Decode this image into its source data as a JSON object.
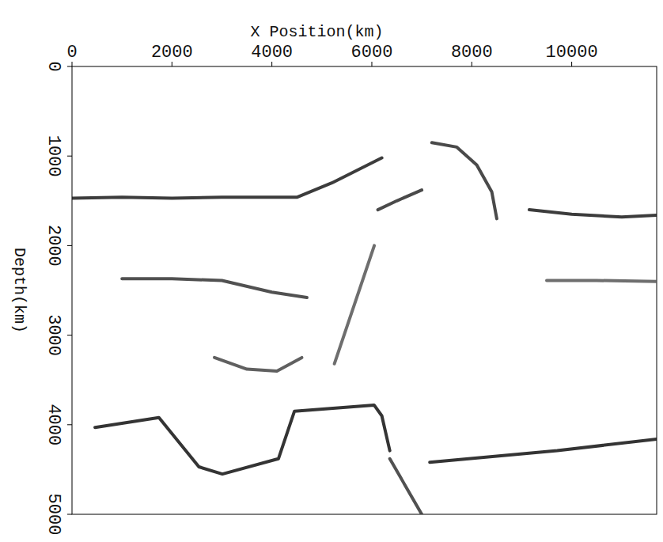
{
  "chart_data": {
    "type": "line",
    "x_label": "X Position(km)",
    "y_label": "Depth(km)",
    "xlim": [
      0,
      11700
    ],
    "ylim": [
      5000,
      0
    ],
    "xticks": [
      0,
      2000,
      4000,
      6000,
      8000,
      10000
    ],
    "yticks": [
      0,
      1000,
      2000,
      3000,
      4000,
      5000
    ],
    "grid": false,
    "series": [
      {
        "color": "#1a1a1a",
        "x": [
          0,
          1000,
          2000,
          3000,
          4500,
          5200,
          6200
        ],
        "values": [
          1470,
          1460,
          1470,
          1460,
          1460,
          1300,
          1020
        ]
      },
      {
        "color": "#1a1a1a",
        "x": [
          9150,
          10000,
          11000,
          11700
        ],
        "values": [
          1600,
          1650,
          1680,
          1660
        ]
      },
      {
        "color": "#2a2a2a",
        "x": [
          6120,
          6500,
          7000
        ],
        "values": [
          1600,
          1500,
          1380
        ]
      },
      {
        "color": "#2a2a2a",
        "x": [
          7200,
          7700,
          8100,
          8400,
          8500
        ],
        "values": [
          850,
          900,
          1100,
          1400,
          1700
        ]
      },
      {
        "color": "#333333",
        "x": [
          1000,
          2000,
          3000,
          4000,
          4700
        ],
        "values": [
          2370,
          2370,
          2390,
          2520,
          2580
        ]
      },
      {
        "color": "#555555",
        "x": [
          9500,
          10500,
          11700
        ],
        "values": [
          2390,
          2390,
          2400
        ]
      },
      {
        "color": "#444444",
        "x": [
          2850,
          3500,
          4100,
          4600
        ],
        "values": [
          3250,
          3380,
          3400,
          3250
        ]
      },
      {
        "color": "#111111",
        "x": [
          460,
          1740,
          2540,
          3010,
          4130,
          4450,
          6045,
          6200,
          6360
        ],
        "values": [
          4030,
          3920,
          4470,
          4550,
          4380,
          3850,
          3780,
          3900,
          4290
        ]
      },
      {
        "color": "#111111",
        "x": [
          7160,
          9710,
          11700
        ],
        "values": [
          4420,
          4290,
          4160
        ]
      },
      {
        "color": "#555555",
        "x": [
          5250,
          6050
        ],
        "values": [
          3320,
          2000
        ]
      },
      {
        "color": "#333333",
        "x": [
          6360,
          7000
        ],
        "values": [
          4380,
          5000
        ]
      }
    ]
  }
}
